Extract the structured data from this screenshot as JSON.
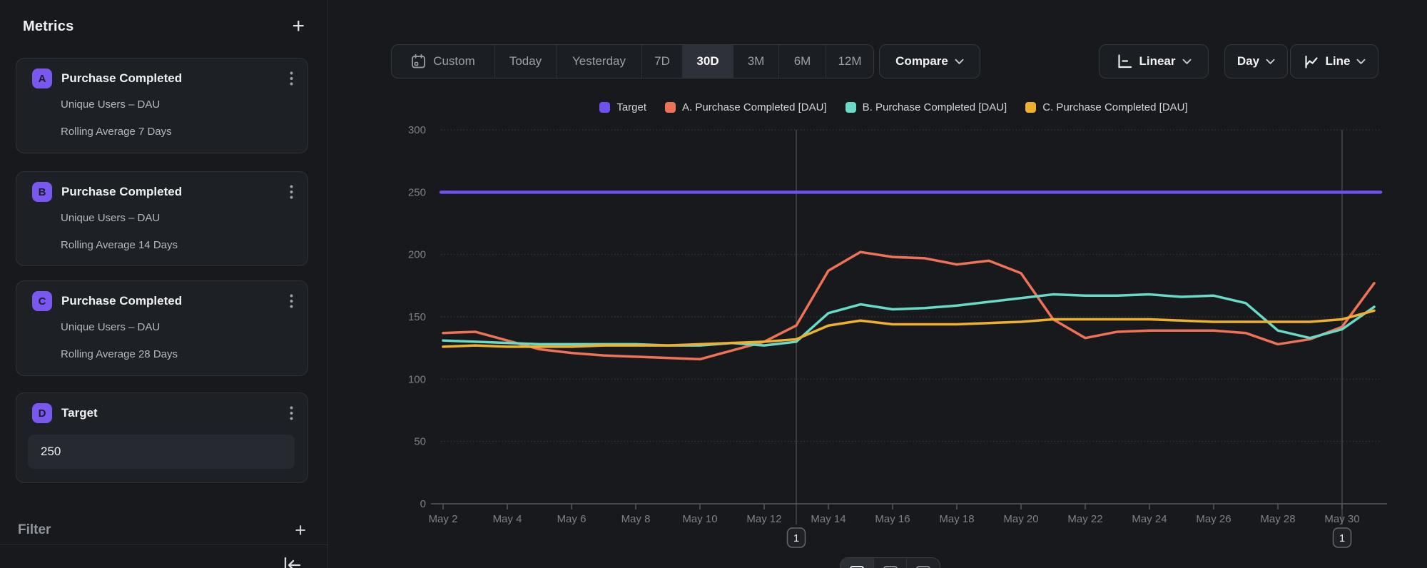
{
  "sidebar": {
    "title": "Metrics",
    "filter_label": "Filter",
    "metrics": [
      {
        "badge": "A",
        "title": "Purchase Completed",
        "line1": "Unique Users – DAU",
        "line2": "Rolling Average 7 Days"
      },
      {
        "badge": "B",
        "title": "Purchase Completed",
        "line1": "Unique Users – DAU",
        "line2": "Rolling Average 14 Days"
      },
      {
        "badge": "C",
        "title": "Purchase Completed",
        "line1": "Unique Users – DAU",
        "line2": "Rolling Average 28 Days"
      },
      {
        "badge": "D",
        "title": "Target",
        "input_value": "250"
      }
    ],
    "badge_color": "#7a58f0"
  },
  "toolbar": {
    "ranges": [
      "Custom",
      "Today",
      "Yesterday",
      "7D",
      "30D",
      "3M",
      "6M",
      "12M"
    ],
    "active_range": "30D",
    "compare_label": "Compare",
    "scale_label": "Linear",
    "granularity_label": "Day",
    "chart_type_label": "Line"
  },
  "chart_data": {
    "type": "line",
    "x": [
      "May 2",
      "May 3",
      "May 4",
      "May 5",
      "May 6",
      "May 7",
      "May 8",
      "May 9",
      "May 10",
      "May 11",
      "May 12",
      "May 13",
      "May 14",
      "May 15",
      "May 16",
      "May 17",
      "May 18",
      "May 19",
      "May 20",
      "May 21",
      "May 22",
      "May 23",
      "May 24",
      "May 25",
      "May 26",
      "May 27",
      "May 28",
      "May 29",
      "May 30",
      "May 31"
    ],
    "x_tick_every": 2,
    "yticks": [
      0,
      50,
      100,
      150,
      200,
      250,
      300
    ],
    "ylim": [
      0,
      300
    ],
    "grid": "horizontal-dotted",
    "legend_position": "top",
    "series": [
      {
        "name": "Target",
        "color": "#7150f0",
        "full_width": true,
        "values": [
          250,
          250,
          250,
          250,
          250,
          250,
          250,
          250,
          250,
          250,
          250,
          250,
          250,
          250,
          250,
          250,
          250,
          250,
          250,
          250,
          250,
          250,
          250,
          250,
          250,
          250,
          250,
          250,
          250,
          250
        ]
      },
      {
        "name": "A. Purchase Completed [DAU]",
        "color": "#ee7356",
        "values": [
          137,
          138,
          131,
          124,
          121,
          119,
          118,
          117,
          116,
          123,
          130,
          143,
          187,
          202,
          198,
          197,
          192,
          195,
          185,
          148,
          133,
          138,
          139,
          139,
          139,
          137,
          128,
          132,
          142,
          177
        ]
      },
      {
        "name": "B. Purchase Completed [DAU]",
        "color": "#68dac6",
        "values": [
          131,
          130,
          129,
          128,
          128,
          128,
          128,
          127,
          127,
          129,
          127,
          130,
          153,
          160,
          156,
          157,
          159,
          162,
          165,
          168,
          167,
          167,
          168,
          166,
          167,
          161,
          139,
          133,
          140,
          158
        ]
      },
      {
        "name": "C. Purchase Completed [DAU]",
        "color": "#f0b02f",
        "values": [
          126,
          127,
          126,
          126,
          126,
          127,
          127,
          127,
          128,
          129,
          130,
          132,
          143,
          147,
          144,
          144,
          144,
          145,
          146,
          148,
          148,
          148,
          148,
          147,
          146,
          146,
          146,
          146,
          148,
          155
        ]
      }
    ],
    "annotations": [
      {
        "label": "1",
        "x": "May 13"
      },
      {
        "label": "1",
        "x": "May 30"
      }
    ]
  }
}
